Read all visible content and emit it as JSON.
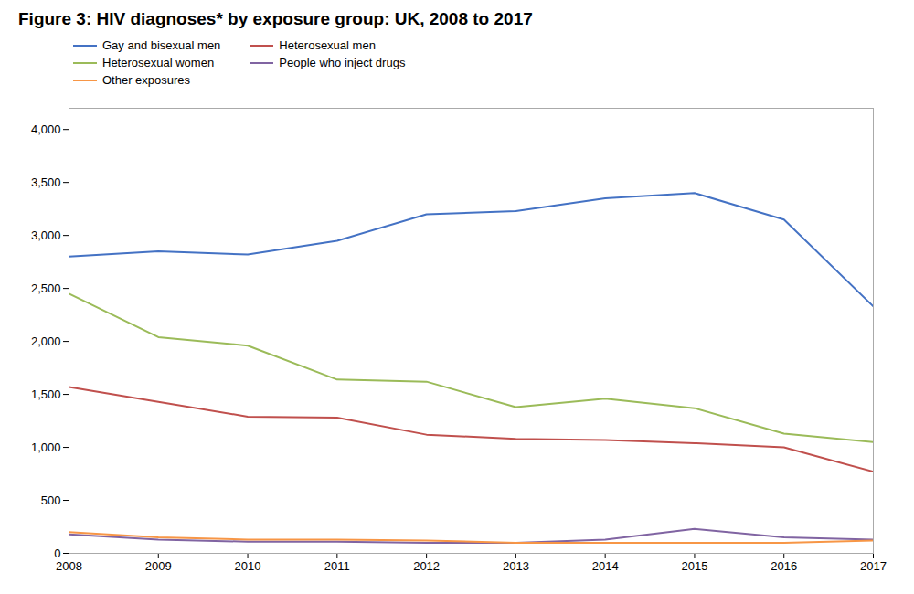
{
  "chart_data": {
    "type": "line",
    "title": "Figure 3: HIV diagnoses* by exposure group: UK, 2008 to 2017",
    "x": [
      2008,
      2009,
      2010,
      2011,
      2012,
      2013,
      2014,
      2015,
      2016,
      2017
    ],
    "series": [
      {
        "name": "Gay and bisexual men",
        "color": "#4472C4",
        "values": [
          2800,
          2850,
          2820,
          2950,
          3200,
          3230,
          3350,
          3400,
          3150,
          2330
        ]
      },
      {
        "name": "Heterosexual men",
        "color": "#C0504D",
        "values": [
          1570,
          1430,
          1290,
          1280,
          1120,
          1080,
          1070,
          1040,
          1000,
          770
        ]
      },
      {
        "name": "Heterosexual women",
        "color": "#9BBB59",
        "values": [
          2450,
          2040,
          1960,
          1640,
          1620,
          1380,
          1460,
          1370,
          1130,
          1050
        ]
      },
      {
        "name": "People who inject drugs",
        "color": "#8064A2",
        "values": [
          180,
          130,
          110,
          110,
          100,
          100,
          130,
          230,
          150,
          130
        ]
      },
      {
        "name": "Other exposures",
        "color": "#F79646",
        "values": [
          200,
          150,
          130,
          130,
          120,
          100,
          100,
          100,
          100,
          120
        ]
      }
    ],
    "xlim": [
      2008,
      2017
    ],
    "xticks": [
      2008,
      2009,
      2010,
      2011,
      2012,
      2013,
      2014,
      2015,
      2016,
      2017
    ],
    "ylim": [
      0,
      4200
    ],
    "yticks": [
      0,
      500,
      {
        "value": 1000,
        "label": "1,000"
      },
      {
        "value": 1500,
        "label": "1,500"
      },
      {
        "value": 2000,
        "label": "2,000"
      },
      {
        "value": 2500,
        "label": "2,500"
      },
      {
        "value": 3000,
        "label": "3,000"
      },
      {
        "value": 3500,
        "label": "3,500"
      },
      {
        "value": 4000,
        "label": "4,000"
      }
    ],
    "grid": false,
    "legend": "upper left"
  }
}
